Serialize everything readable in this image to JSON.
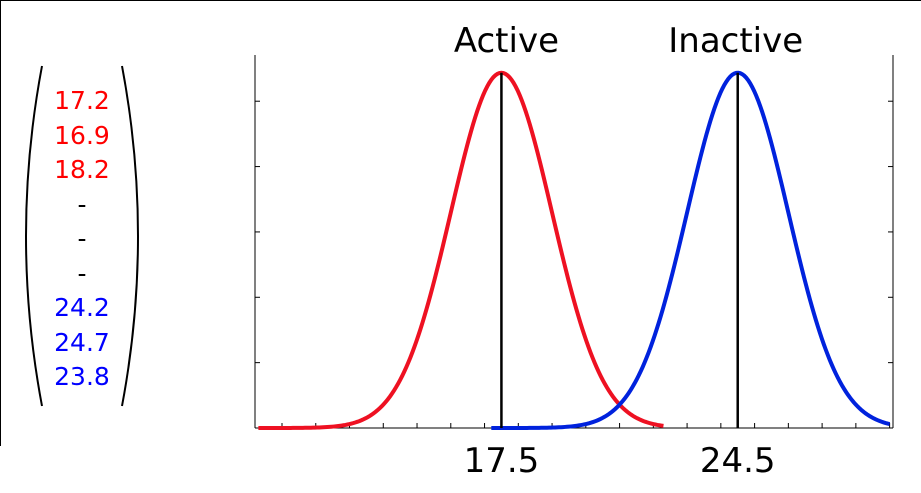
{
  "vector": {
    "entries": [
      {
        "text": "17.2",
        "color": "#ff0000"
      },
      {
        "text": "16.9",
        "color": "#ff0000"
      },
      {
        "text": "18.2",
        "color": "#ff0000"
      },
      {
        "text": "-",
        "color": "#000000"
      },
      {
        "text": "-",
        "color": "#000000"
      },
      {
        "text": "-",
        "color": "#000000"
      },
      {
        "text": "24.2",
        "color": "#0000ff"
      },
      {
        "text": "24.7",
        "color": "#0000ff"
      },
      {
        "text": "23.8",
        "color": "#0000ff"
      }
    ]
  },
  "chart_data": {
    "type": "line",
    "title": "",
    "xlabel": "",
    "ylabel": "",
    "x_tick_labels": [
      "17.5",
      "24.5"
    ],
    "xlim": [
      10.2,
      29.1
    ],
    "ylim": [
      0,
      1.05
    ],
    "grid": false,
    "series": [
      {
        "name": "Active",
        "mean": 17.5,
        "sd": 1.5,
        "x_range": [
          10.3,
          16.8,
          22.3
        ],
        "color": "#ee1122",
        "x": [
          10.3,
          22.3
        ],
        "peak": 1.0
      },
      {
        "name": "Inactive",
        "mean": 24.5,
        "sd": 1.5,
        "x_range": [
          17.2,
          29.0
        ],
        "color": "#0022dd",
        "x": [
          17.2,
          29.0
        ],
        "peak": 1.0
      }
    ],
    "mean_lines": [
      17.5,
      24.5
    ]
  }
}
